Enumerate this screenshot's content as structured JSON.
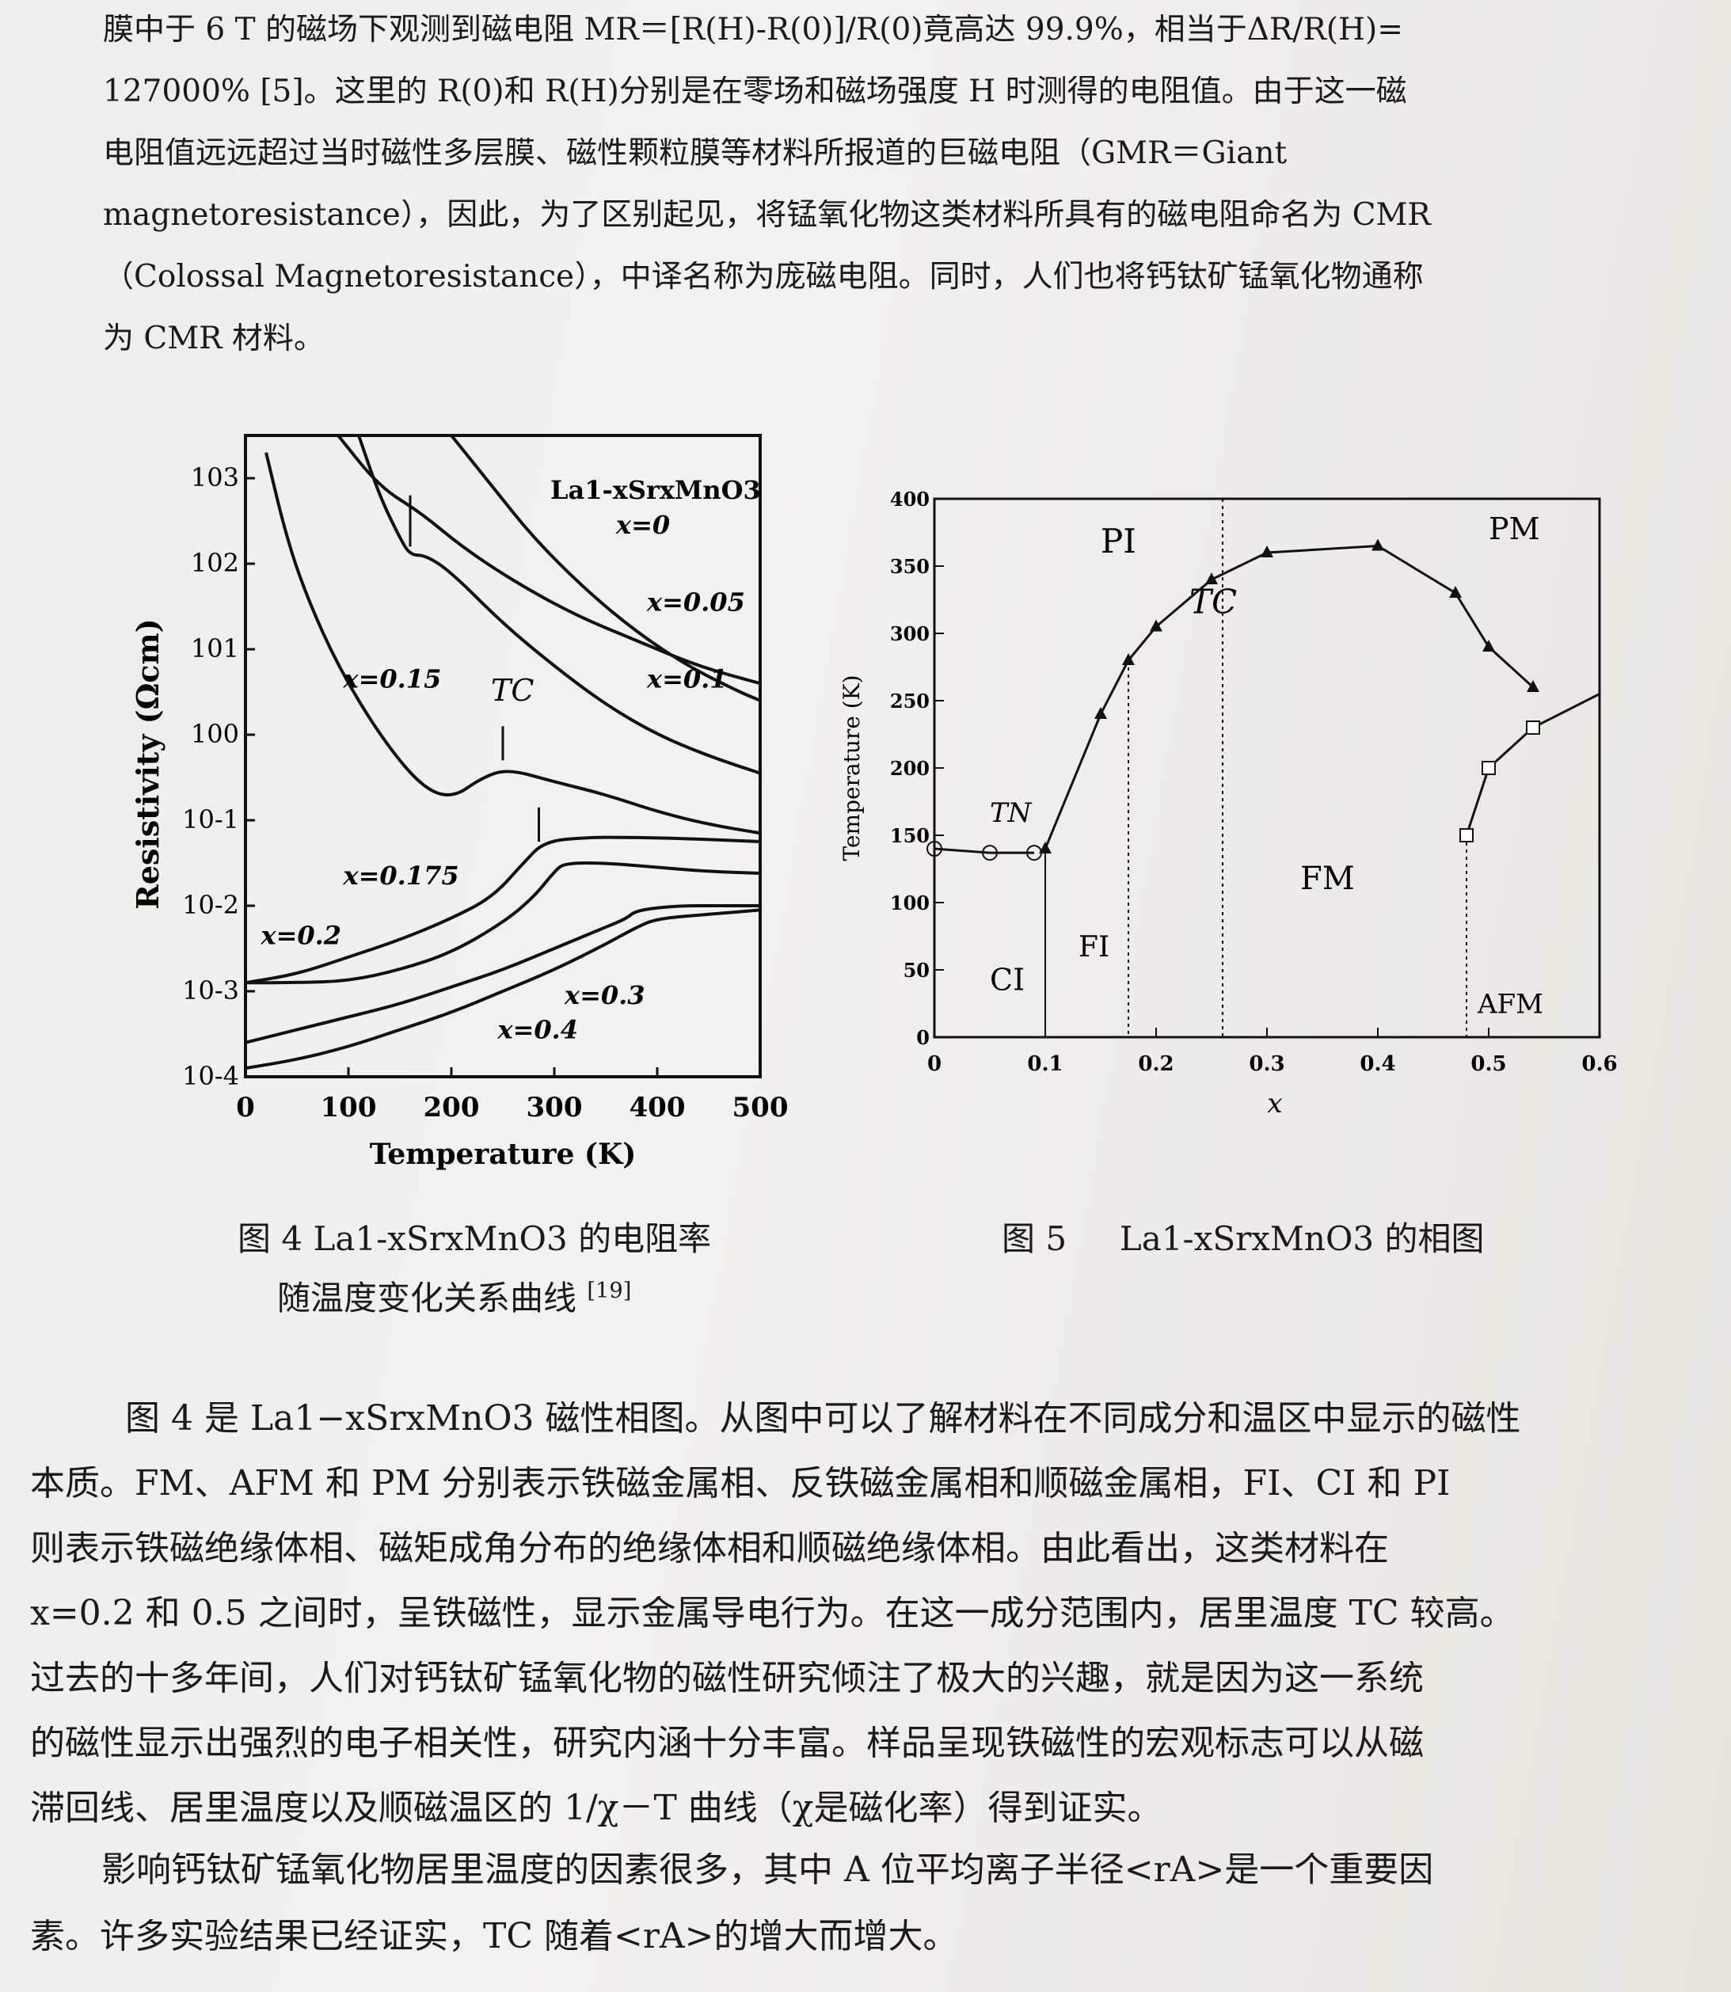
{
  "paragraph1": [
    "膜中于 6 T 的磁场下观测到磁电阻 MR＝[R(H)-R(0)]/R(0)竟高达 99.9%，相当于ΔR/R(H)=",
    "127000% [5]。这里的 R(0)和 R(H)分别是在零场和磁场强度 H 时测得的电阻值。由于这一磁",
    "电阻值远远超过当时磁性多层膜、磁性颗粒膜等材料所报道的巨磁电阻（GMR＝Giant",
    "magnetoresistance），因此，为了区别起见，将锰氧化物这类材料所具有的磁电阻命名为 CMR",
    "（Colossal Magnetoresistance），中译名称为庞磁电阻。同时，人们也将钙钛矿锰氧化物通称",
    "为 CMR 材料。"
  ],
  "figure4": {
    "caption_line1_prefix": "图 4 ",
    "caption_formula": "La1-xSrxMnO3",
    "caption_line1_suffix": " 的电阻率",
    "caption_line2": "随温度变化关系曲线",
    "caption_ref": "[19]"
  },
  "figure5": {
    "caption_prefix": "图 5",
    "caption_formula": "La1-xSrxMnO3",
    "caption_suffix": " 的相图"
  },
  "paragraph2": [
    "图 4 是 La1−xSrxMnO3 磁性相图。从图中可以了解材料在不同成分和温区中显示的磁性",
    "本质。FM、AFM 和 PM 分别表示铁磁金属相、反铁磁金属相和顺磁金属相，FI、CI 和 PI",
    "则表示铁磁绝缘体相、磁矩成角分布的绝缘体相和顺磁绝缘体相。由此看出，这类材料在",
    "x=0.2 和 0.5 之间时，呈铁磁性，显示金属导电行为。在这一成分范围内，居里温度 TC 较高。",
    "过去的十多年间，人们对钙钛矿锰氧化物的磁性研究倾注了极大的兴趣，就是因为这一系统",
    "的磁性显示出强烈的电子相关性，研究内涵十分丰富。样品呈现铁磁性的宏观标志可以从磁",
    "滞回线、居里温度以及顺磁温区的 1/χ－T 曲线（χ是磁化率）得到证实。"
  ],
  "paragraph3": [
    "影响钙钛矿锰氧化物居里温度的因素很多，其中 A 位平均离子半径<rA>是一个重要因",
    "素。许多实验结果已经证实，TC 随着<rA>的增大而增大。"
  ],
  "chart_data": [
    {
      "type": "line",
      "title": "La1-xSrxMnO3",
      "xlabel": "Temperature (K)",
      "ylabel": "Resistivity (Ωcm)",
      "xlim": [
        0,
        500
      ],
      "ylim_log10": [
        -4,
        3.5
      ],
      "yscale": "log",
      "x_ticks": [
        "0",
        "100",
        "200",
        "300",
        "400",
        "500"
      ],
      "y_ticks": [
        "10-4",
        "10-3",
        "10-2",
        "10-1",
        "100",
        "101",
        "102",
        "103"
      ],
      "annotation_tc": "TC",
      "series": [
        {
          "name": "x=0",
          "x": [
            90,
            130,
            170,
            210,
            260,
            320,
            380,
            440,
            500
          ],
          "log_y": [
            3.5,
            2.9,
            2.6,
            2.2,
            1.8,
            1.4,
            1.1,
            0.8,
            0.6
          ]
        },
        {
          "name": "x=0.05",
          "x": [
            200,
            240,
            280,
            330,
            380,
            430,
            480,
            500
          ],
          "log_y": [
            3.5,
            2.9,
            2.3,
            1.7,
            1.2,
            0.8,
            0.5,
            0.4
          ]
        },
        {
          "name": "x=0.1",
          "x": [
            110,
            130,
            150,
            160,
            175,
            200,
            250,
            300,
            350,
            400,
            450,
            500
          ],
          "log_y": [
            3.5,
            2.8,
            2.3,
            2.1,
            2.1,
            1.9,
            1.3,
            0.8,
            0.35,
            0.0,
            -0.25,
            -0.45
          ]
        },
        {
          "name": "x=0.15",
          "x": [
            20,
            40,
            60,
            90,
            130,
            170,
            200,
            230,
            255,
            300,
            350,
            400,
            450,
            500
          ],
          "log_y": [
            3.3,
            2.3,
            1.6,
            0.8,
            0.0,
            -0.6,
            -0.75,
            -0.5,
            -0.4,
            -0.55,
            -0.7,
            -0.9,
            -1.05,
            -1.15
          ]
        },
        {
          "name": "x=0.175",
          "x": [
            0,
            50,
            100,
            150,
            200,
            240,
            270,
            290,
            330,
            380,
            440,
            500
          ],
          "log_y": [
            -2.9,
            -2.8,
            -2.6,
            -2.4,
            -2.15,
            -1.9,
            -1.5,
            -1.25,
            -1.2,
            -1.2,
            -1.22,
            -1.25
          ]
        },
        {
          "name": "x=0.2",
          "x": [
            0,
            50,
            100,
            150,
            200,
            250,
            280,
            300,
            310,
            350,
            400,
            450,
            500
          ],
          "log_y": [
            -2.9,
            -2.9,
            -2.88,
            -2.75,
            -2.55,
            -2.2,
            -1.9,
            -1.6,
            -1.5,
            -1.5,
            -1.55,
            -1.6,
            -1.62
          ]
        },
        {
          "name": "x=0.3",
          "x": [
            0,
            50,
            100,
            150,
            200,
            250,
            300,
            350,
            370,
            380,
            420,
            460,
            500
          ],
          "log_y": [
            -3.6,
            -3.45,
            -3.3,
            -3.15,
            -2.95,
            -2.75,
            -2.5,
            -2.25,
            -2.15,
            -2.05,
            -2.0,
            -2.0,
            -2.0
          ]
        },
        {
          "name": "x=0.4",
          "x": [
            0,
            50,
            100,
            150,
            200,
            250,
            300,
            350,
            380,
            400,
            450,
            500
          ],
          "log_y": [
            -3.9,
            -3.8,
            -3.65,
            -3.45,
            -3.25,
            -3.0,
            -2.75,
            -2.45,
            -2.25,
            -2.15,
            -2.1,
            -2.05
          ]
        }
      ]
    },
    {
      "type": "line",
      "xlabel": "x",
      "ylabel": "Temperature (K)",
      "xlim": [
        0,
        0.6
      ],
      "ylim": [
        0,
        400
      ],
      "x_ticks": [
        "0",
        "0.1",
        "0.2",
        "0.3",
        "0.4",
        "0.5",
        "0.6"
      ],
      "y_ticks": [
        "0",
        "50",
        "100",
        "150",
        "200",
        "250",
        "300",
        "350",
        "400"
      ],
      "phase_labels": [
        "PI",
        "TC",
        "PM",
        "TN",
        "FM",
        "FI",
        "CI",
        "AFM"
      ],
      "series": [
        {
          "name": "TN",
          "marker": "circle",
          "x": [
            0,
            0.05,
            0.09
          ],
          "y": [
            140,
            137,
            137
          ]
        },
        {
          "name": "TC",
          "marker": "triangle",
          "x": [
            0.1,
            0.15,
            0.175,
            0.2,
            0.25,
            0.3,
            0.4,
            0.47,
            0.5,
            0.54
          ],
          "y": [
            140,
            240,
            280,
            305,
            340,
            360,
            365,
            330,
            290,
            260
          ]
        },
        {
          "name": "AFM boundary",
          "marker": "square",
          "x": [
            0.48,
            0.5,
            0.54,
            0.6
          ],
          "y": [
            150,
            200,
            230,
            255
          ]
        }
      ],
      "phase_boundaries_x": [
        0.1,
        0.175,
        0.26,
        0.48
      ]
    }
  ]
}
